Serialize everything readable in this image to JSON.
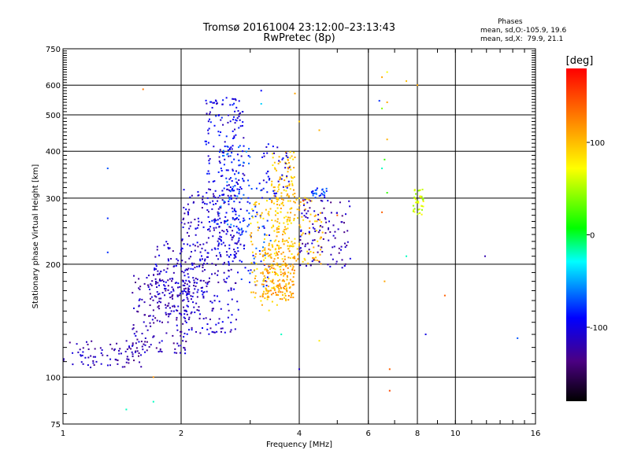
{
  "chart_data": {
    "type": "scatter",
    "title": "Tromsø 20161004 23:12:00–23:13:43",
    "subtitle": "RwPretec (8p)",
    "xlabel": "Frequency [MHz]",
    "ylabel": "Stationary phase Virtual Height [km]",
    "x_scale": "log2",
    "y_scale": "log",
    "xlim": [
      1,
      16
    ],
    "ylim": [
      75,
      750
    ],
    "x_ticks": [
      1,
      2,
      4,
      6,
      8,
      10,
      16
    ],
    "x_tick_labels": [
      "1",
      "2",
      "4",
      "6",
      "8",
      "10",
      "16"
    ],
    "y_ticks": [
      75,
      100,
      200,
      300,
      400,
      500,
      600,
      750
    ],
    "y_tick_labels": [
      "75",
      "100",
      "200",
      "300",
      "400",
      "500",
      "600",
      "750"
    ],
    "grid": true,
    "phases_header": "Phases",
    "phase_stats": [
      "mean, sd,O:-105.9, 19.6",
      "mean, sd,X:  79.9, 21.1"
    ],
    "colorbar": {
      "unit": "[deg]",
      "range": [
        -180,
        180
      ],
      "ticks": [
        100,
        0,
        -100
      ],
      "tick_labels": [
        "100",
        "0",
        "-100"
      ]
    },
    "clusters": [
      {
        "x": [
          1.0,
          1.6
        ],
        "y": [
          106,
          125
        ],
        "phase": -120,
        "n": 80
      },
      {
        "x": [
          1.5,
          2.1
        ],
        "y": [
          115,
          190
        ],
        "phase": -118,
        "n": 180
      },
      {
        "x": [
          1.7,
          2.3
        ],
        "y": [
          150,
          230
        ],
        "phase": -112,
        "n": 140
      },
      {
        "x": [
          2.0,
          2.8
        ],
        "y": [
          130,
          320
        ],
        "phase": -110,
        "n": 260
      },
      {
        "x": [
          2.3,
          2.9
        ],
        "y": [
          200,
          560
        ],
        "phase": -100,
        "n": 220
      },
      {
        "x": [
          2.5,
          3.0
        ],
        "y": [
          240,
          420
        ],
        "phase": -75,
        "n": 80
      },
      {
        "x": [
          2.8,
          3.4
        ],
        "y": [
          170,
          330
        ],
        "phase": -80,
        "n": 60
      },
      {
        "x": [
          3.0,
          3.6
        ],
        "y": [
          150,
          300
        ],
        "phase": 95,
        "n": 90
      },
      {
        "x": [
          3.2,
          3.9
        ],
        "y": [
          160,
          220
        ],
        "phase": 110,
        "n": 180
      },
      {
        "x": [
          3.4,
          3.9
        ],
        "y": [
          220,
          400
        ],
        "phase": 98,
        "n": 150
      },
      {
        "x": [
          3.2,
          3.8
        ],
        "y": [
          300,
          420
        ],
        "phase": -100,
        "n": 40
      },
      {
        "x": [
          3.6,
          4.6
        ],
        "y": [
          200,
          310
        ],
        "phase": 100,
        "n": 90
      },
      {
        "x": [
          4.0,
          5.4
        ],
        "y": [
          195,
          300
        ],
        "phase": -120,
        "n": 110
      },
      {
        "x": [
          4.3,
          4.7
        ],
        "y": [
          300,
          320
        ],
        "phase": -75,
        "n": 25
      },
      {
        "x": [
          7.8,
          8.3
        ],
        "y": [
          270,
          320
        ],
        "phase": 60,
        "n": 40
      }
    ],
    "points": [
      {
        "x": 1.3,
        "y": 360,
        "phase": -70
      },
      {
        "x": 1.3,
        "y": 265,
        "phase": -80
      },
      {
        "x": 1.3,
        "y": 215,
        "phase": -80
      },
      {
        "x": 1.6,
        "y": 585,
        "phase": 130
      },
      {
        "x": 1.7,
        "y": 100,
        "phase": 120
      },
      {
        "x": 1.7,
        "y": 86,
        "phase": -20
      },
      {
        "x": 1.45,
        "y": 82,
        "phase": -20
      },
      {
        "x": 3.2,
        "y": 580,
        "phase": -90
      },
      {
        "x": 3.2,
        "y": 535,
        "phase": -40
      },
      {
        "x": 3.9,
        "y": 570,
        "phase": 110
      },
      {
        "x": 4.0,
        "y": 480,
        "phase": 95
      },
      {
        "x": 4.5,
        "y": 455,
        "phase": 105
      },
      {
        "x": 4.0,
        "y": 105,
        "phase": -110
      },
      {
        "x": 4.5,
        "y": 125,
        "phase": 80
      },
      {
        "x": 3.6,
        "y": 130,
        "phase": -20
      },
      {
        "x": 6.7,
        "y": 650,
        "phase": 70
      },
      {
        "x": 6.5,
        "y": 630,
        "phase": 110
      },
      {
        "x": 6.4,
        "y": 545,
        "phase": -80
      },
      {
        "x": 6.7,
        "y": 540,
        "phase": 110
      },
      {
        "x": 6.5,
        "y": 520,
        "phase": 40
      },
      {
        "x": 6.7,
        "y": 430,
        "phase": 105
      },
      {
        "x": 6.6,
        "y": 380,
        "phase": 20
      },
      {
        "x": 6.5,
        "y": 360,
        "phase": -20
      },
      {
        "x": 6.7,
        "y": 310,
        "phase": 20
      },
      {
        "x": 6.5,
        "y": 275,
        "phase": 140
      },
      {
        "x": 6.6,
        "y": 180,
        "phase": 110
      },
      {
        "x": 6.8,
        "y": 105,
        "phase": 140
      },
      {
        "x": 6.8,
        "y": 92,
        "phase": 150
      },
      {
        "x": 7.5,
        "y": 615,
        "phase": 100
      },
      {
        "x": 7.5,
        "y": 210,
        "phase": -20
      },
      {
        "x": 8.0,
        "y": 600,
        "phase": 110
      },
      {
        "x": 8.4,
        "y": 130,
        "phase": -100
      },
      {
        "x": 9.4,
        "y": 165,
        "phase": 140
      },
      {
        "x": 11.9,
        "y": 210,
        "phase": -120
      },
      {
        "x": 14.4,
        "y": 127,
        "phase": -70
      },
      {
        "x": 5.0,
        "y": 270,
        "phase": 140
      },
      {
        "x": 4.1,
        "y": 295,
        "phase": 150
      }
    ]
  }
}
